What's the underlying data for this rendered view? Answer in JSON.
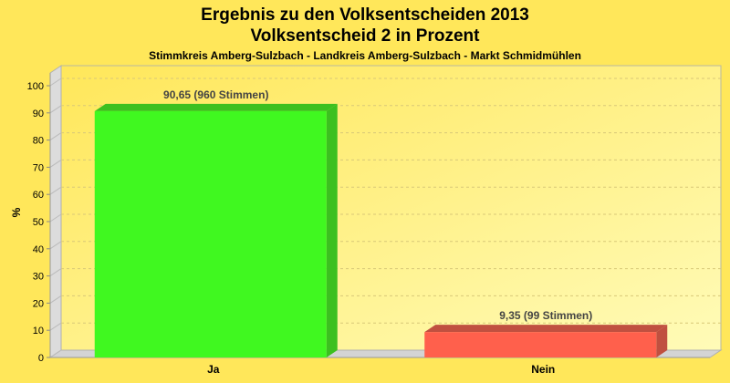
{
  "chart_data": {
    "type": "bar",
    "title": "Ergebnis zu den Volksentscheiden 2013",
    "title2": "Volksentscheid 2 in Prozent",
    "subtitle": "Stimmkreis Amberg-Sulzbach - Landkreis Amberg-Sulzbach - Markt Schmidmühlen",
    "xlabel": "",
    "ylabel": "%",
    "ylim": [
      0,
      100
    ],
    "yticks": [
      0,
      10,
      20,
      30,
      40,
      50,
      60,
      70,
      80,
      90,
      100
    ],
    "grid": true,
    "categories": [
      "Ja",
      "Nein"
    ],
    "values": [
      90.65,
      9.35
    ],
    "data_labels": [
      "90,65 (960 Stimmen)",
      "9,35 (99 Stimmen)"
    ],
    "colors": [
      "#40f820",
      "#ff604c"
    ],
    "side_colors": [
      "#3cc020",
      "#c05040"
    ]
  }
}
